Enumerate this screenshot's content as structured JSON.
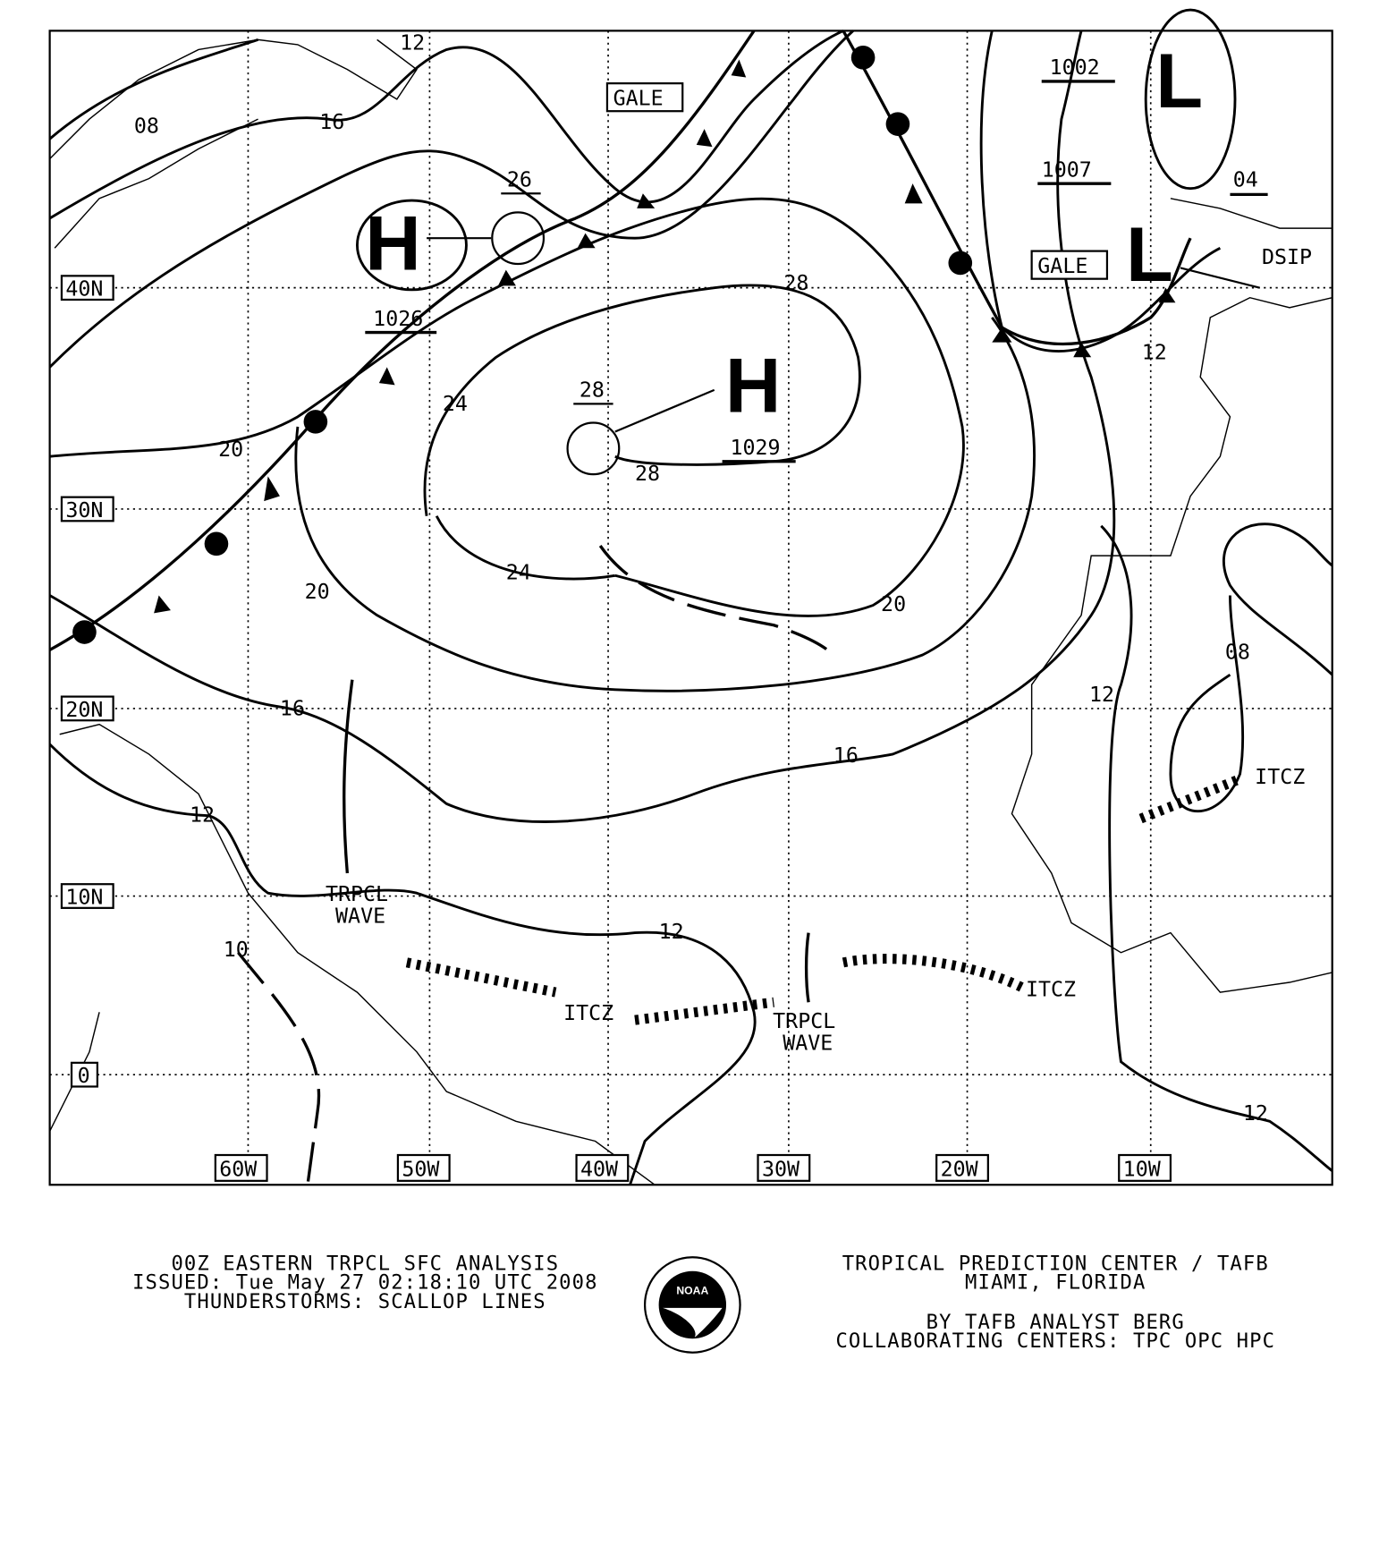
{
  "map": {
    "type": "surface weather analysis",
    "latitude_labels": [
      "40N",
      "30N",
      "20N",
      "10N",
      "0"
    ],
    "longitude_labels": [
      "60W",
      "50W",
      "40W",
      "30W",
      "20W",
      "10W"
    ],
    "isobar_labels": [
      "12",
      "08",
      "16",
      "20",
      "24",
      "28",
      "28",
      "24",
      "20",
      "20",
      "16",
      "16",
      "12",
      "12",
      "10",
      "12",
      "08",
      "12",
      "12",
      "04"
    ],
    "pressure_centers": [
      {
        "symbol": "H",
        "value": "1026"
      },
      {
        "symbol": "H",
        "value": "1029"
      },
      {
        "symbol": "L",
        "value": "1002"
      },
      {
        "symbol": "L",
        "value": "1007"
      }
    ],
    "station_values": [
      "26",
      "28"
    ],
    "gale_label": "GALE",
    "dsip_label": "DSIP",
    "tropical_wave_label": [
      "TRPCL",
      "WAVE"
    ],
    "itcz_label": "ITCZ"
  },
  "footer": {
    "left": [
      "00Z EASTERN TRPCL SFC ANALYSIS",
      "ISSUED: Tue May 27 02:18:10 UTC 2008",
      "THUNDERSTORMS: SCALLOP LINES"
    ],
    "right": [
      "TROPICAL PREDICTION CENTER / TAFB",
      "MIAMI,  FLORIDA",
      "",
      "BY TAFB ANALYST  BERG",
      "COLLABORATING CENTERS: TPC OPC HPC"
    ],
    "logo_text": "NOAA"
  }
}
